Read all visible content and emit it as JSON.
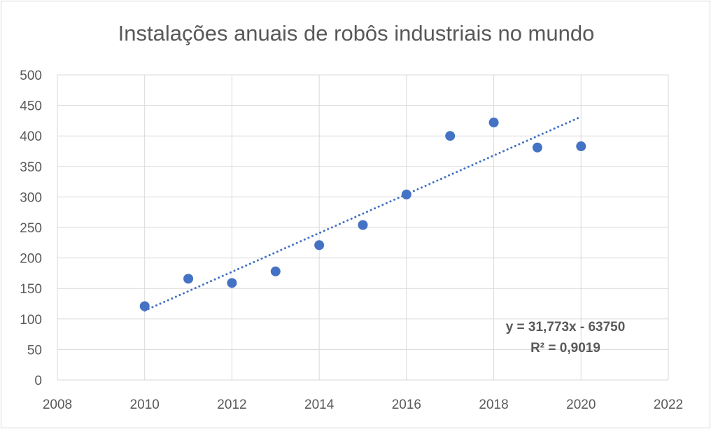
{
  "chart_data": {
    "type": "scatter",
    "title": "Instalações anuais de robôs industriais no mundo",
    "xlabel": "",
    "ylabel": "",
    "xlim": [
      2008,
      2022
    ],
    "ylim": [
      0,
      500
    ],
    "x_ticks": [
      "2008",
      "2010",
      "2012",
      "2014",
      "2016",
      "2018",
      "2020",
      "2022"
    ],
    "y_ticks": [
      "0",
      "50",
      "100",
      "150",
      "200",
      "250",
      "300",
      "350",
      "400",
      "450",
      "500"
    ],
    "grid": true,
    "marker_color": "#4472c4",
    "series": [
      {
        "x": [
          2010,
          2011,
          2012,
          2013,
          2014,
          2015,
          2016,
          2017,
          2018,
          2019,
          2020
        ],
        "y": [
          121,
          166,
          159,
          178,
          221,
          254,
          304,
          400,
          422,
          381,
          383
        ]
      }
    ],
    "trendline": {
      "type": "linear",
      "x_range": [
        2010,
        2020
      ],
      "slope": 31.773,
      "intercept": -63750,
      "style": "dotted",
      "color": "#4472c4",
      "equation_label": "y = 31,773x - 63750",
      "r2_label": "R² = 0,9019"
    }
  }
}
